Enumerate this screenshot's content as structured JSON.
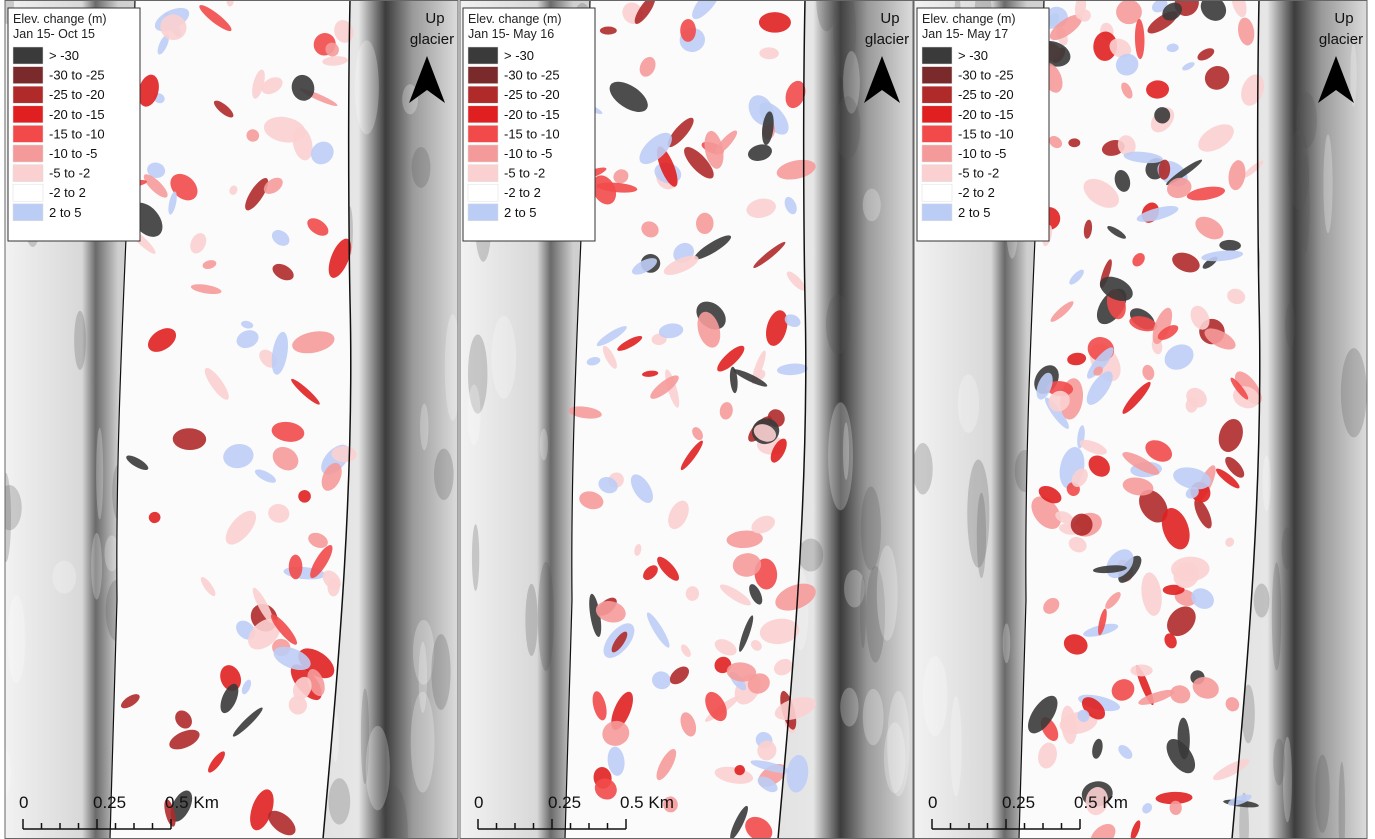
{
  "panels": [
    {
      "legend_title": "Elev. change (m)",
      "period": "Jan 15- Oct 15",
      "arrow_label": [
        "Up",
        "glacier"
      ],
      "scale_labels": [
        "0",
        "0.25",
        "0.5 Km"
      ],
      "legend": [
        {
          "label": "> -30",
          "color": "#3a3a3a"
        },
        {
          "label": "-30 to -25",
          "color": "#7a2a2a"
        },
        {
          "label": "-25 to -20",
          "color": "#b02a2a"
        },
        {
          "label": "-20 to -15",
          "color": "#e02020"
        },
        {
          "label": "-15 to -10",
          "color": "#f24a4a"
        },
        {
          "label": "-10 to -5",
          "color": "#f59a9a"
        },
        {
          "label": "-5 to -2",
          "color": "#fbd0d0"
        },
        {
          "label": "-2 to 2",
          "color": "#ffffff"
        },
        {
          "label": "2 to 5",
          "color": "#bccdf5"
        }
      ]
    },
    {
      "legend_title": "Elev. change (m)",
      "period": "Jan 15- May 16",
      "arrow_label": [
        "Up",
        "glacier"
      ],
      "scale_labels": [
        "0",
        "0.25",
        "0.5 Km"
      ],
      "legend": [
        {
          "label": "> -30",
          "color": "#3a3a3a"
        },
        {
          "label": "-30 to -25",
          "color": "#7a2a2a"
        },
        {
          "label": "-25 to -20",
          "color": "#b02a2a"
        },
        {
          "label": "-20 to -15",
          "color": "#e02020"
        },
        {
          "label": "-15 to -10",
          "color": "#f24a4a"
        },
        {
          "label": "-10 to -5",
          "color": "#f59a9a"
        },
        {
          "label": "-5 to -2",
          "color": "#fbd0d0"
        },
        {
          "label": "-2 to 2",
          "color": "#ffffff"
        },
        {
          "label": "2 to 5",
          "color": "#bccdf5"
        }
      ]
    },
    {
      "legend_title": "Elev. change (m)",
      "period": "Jan 15- May 17",
      "arrow_label": [
        "Up",
        "glacier"
      ],
      "scale_labels": [
        "0",
        "0.25",
        "0.5 Km"
      ],
      "legend": [
        {
          "label": "> -30",
          "color": "#3a3a3a"
        },
        {
          "label": "-30 to -25",
          "color": "#7a2a2a"
        },
        {
          "label": "-25 to -20",
          "color": "#b02a2a"
        },
        {
          "label": "-20 to -15",
          "color": "#e02020"
        },
        {
          "label": "-15 to -10",
          "color": "#f24a4a"
        },
        {
          "label": "-10 to -5",
          "color": "#f59a9a"
        },
        {
          "label": "-5 to -2",
          "color": "#fbd0d0"
        },
        {
          "label": "-2 to 2",
          "color": "#ffffff"
        },
        {
          "label": "2 to 5",
          "color": "#bccdf5"
        }
      ]
    }
  ]
}
